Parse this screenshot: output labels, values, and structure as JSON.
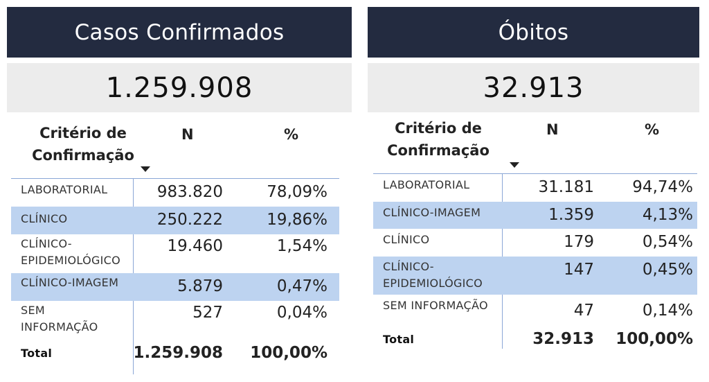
{
  "left": {
    "title": "Casos Confirmados",
    "kpi": "1.259.908",
    "columns": {
      "criterio": "Critério de\nConfirmação",
      "n": "N",
      "pct": "%"
    },
    "rows": [
      {
        "label": "LABORATORIAL",
        "n": "983.820",
        "pct": "78,09%",
        "highlight": false
      },
      {
        "label": "CLÍNICO",
        "n": "250.222",
        "pct": "19,86%",
        "highlight": true
      },
      {
        "label": "CLÍNICO-\nEPIDEMIOLÓGICO",
        "n": "19.460",
        "pct": "1,54%",
        "highlight": false
      },
      {
        "label": "CLÍNICO-IMAGEM",
        "n": "5.879",
        "pct": "0,47%",
        "highlight": true
      },
      {
        "label": "SEM\nINFORMAÇÃO",
        "n": "527",
        "pct": "0,04%",
        "highlight": false
      }
    ],
    "total": {
      "label": "Total",
      "n": "1.259.908",
      "pct": "100,00%"
    }
  },
  "right": {
    "title": "Óbitos",
    "kpi": "32.913",
    "columns": {
      "criterio": "Critério de\nConfirmação",
      "n": "N",
      "pct": "%"
    },
    "rows": [
      {
        "label": "LABORATORIAL",
        "n": "31.181",
        "pct": "94,74%",
        "highlight": false
      },
      {
        "label": "CLÍNICO-IMAGEM",
        "n": "1.359",
        "pct": "4,13%",
        "highlight": true
      },
      {
        "label": "CLÍNICO",
        "n": "179",
        "pct": "0,54%",
        "highlight": false
      },
      {
        "label": "CLÍNICO-\nEPIDEMIOLÓGICO",
        "n": "147",
        "pct": "0,45%",
        "highlight": true
      },
      {
        "label": "SEM INFORMAÇÃO",
        "n": "47",
        "pct": "0,14%",
        "highlight": false
      }
    ],
    "total": {
      "label": "Total",
      "n": "32.913",
      "pct": "100,00%"
    }
  }
}
